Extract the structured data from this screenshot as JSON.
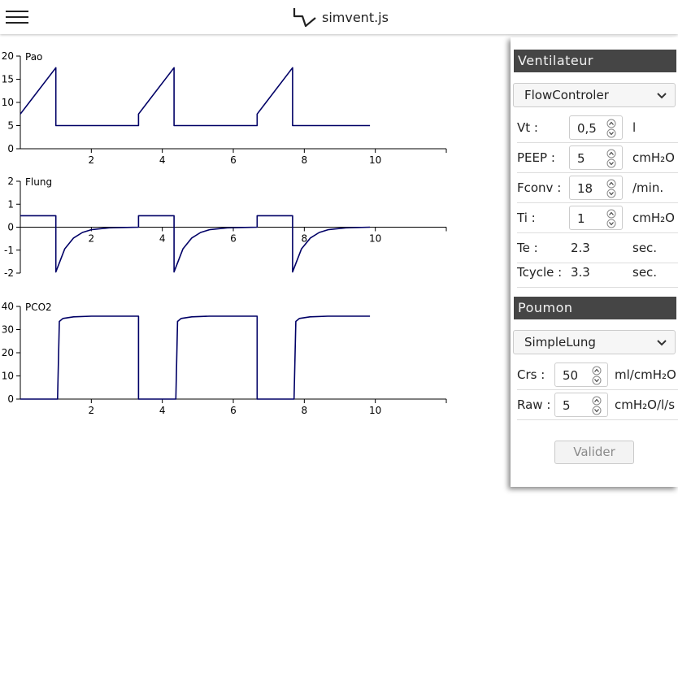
{
  "app": {
    "title": "simvent.js",
    "icons": {
      "menu": "hamburger-menu-icon",
      "logo": "waveform-logo-icon"
    }
  },
  "chart_data": [
    {
      "type": "line",
      "title": "Pao",
      "xlim": [
        0,
        12
      ],
      "ylim": [
        0,
        20
      ],
      "xticks": [
        2,
        4,
        6,
        8,
        10
      ],
      "yticks": [
        0,
        5,
        10,
        15,
        20
      ],
      "series": [
        {
          "color": "#000066",
          "x": [
            0,
            1.0,
            1.0,
            3.33,
            3.33,
            4.33,
            4.33,
            6.67,
            6.67,
            7.67,
            7.67,
            9.85
          ],
          "y": [
            7.5,
            17.5,
            5,
            5,
            7.5,
            17.5,
            5,
            5,
            7.5,
            17.5,
            5,
            5
          ]
        }
      ]
    },
    {
      "type": "line",
      "title": "Flung",
      "xlim": [
        0,
        12
      ],
      "ylim": [
        -2,
        2
      ],
      "xticks": [
        2,
        4,
        6,
        8,
        10
      ],
      "yticks": [
        -2,
        -1,
        0,
        1,
        2
      ],
      "series": [
        {
          "color": "#000066",
          "x": [
            0,
            1.0,
            1.0,
            1.25,
            1.5,
            1.75,
            2.0,
            2.5,
            3.0,
            3.33,
            3.33,
            4.33,
            4.33,
            4.58,
            4.83,
            5.08,
            5.33,
            5.83,
            6.33,
            6.67,
            6.67,
            7.67,
            7.67,
            7.92,
            8.17,
            8.42,
            8.67,
            9.17,
            9.85
          ],
          "y": [
            0.5,
            0.5,
            -1.95,
            -0.95,
            -0.47,
            -0.23,
            -0.11,
            -0.03,
            -0.01,
            0,
            0.5,
            0.5,
            -1.95,
            -0.95,
            -0.47,
            -0.23,
            -0.11,
            -0.03,
            -0.01,
            0,
            0.5,
            0.5,
            -1.95,
            -0.95,
            -0.47,
            -0.23,
            -0.11,
            -0.03,
            0
          ]
        }
      ]
    },
    {
      "type": "line",
      "title": "PCO2",
      "xlim": [
        0,
        12
      ],
      "ylim": [
        0,
        40
      ],
      "xticks": [
        2,
        4,
        6,
        8,
        10
      ],
      "yticks": [
        0,
        10,
        20,
        30,
        40
      ],
      "series": [
        {
          "color": "#000066",
          "x": [
            0,
            1.05,
            1.1,
            1.2,
            1.5,
            2.0,
            3.33,
            3.33,
            4.38,
            4.43,
            4.53,
            4.83,
            5.33,
            6.67,
            6.67,
            7.71,
            7.76,
            7.86,
            8.16,
            8.66,
            9.85
          ],
          "y": [
            0,
            0,
            33.5,
            34.8,
            35.5,
            35.8,
            35.8,
            0,
            0,
            33.5,
            34.8,
            35.5,
            35.8,
            35.8,
            0,
            0,
            33.5,
            34.8,
            35.5,
            35.8,
            35.8
          ]
        }
      ]
    }
  ],
  "panel": {
    "ventilator": {
      "header": "Ventilateur",
      "model": "FlowControler",
      "params": [
        {
          "label": "Vt :",
          "value": "0,5",
          "unit": "l"
        },
        {
          "label": "PEEP :",
          "value": "5",
          "unit": "cmH₂O"
        },
        {
          "label": "Fconv :",
          "value": "18",
          "unit": "/min."
        },
        {
          "label": "Ti :",
          "value": "1",
          "unit": "cmH₂O"
        }
      ],
      "readouts": [
        {
          "label": "Te :",
          "value": "2.3",
          "unit": "sec."
        },
        {
          "label": "Tcycle :",
          "value": "3.3",
          "unit": "sec."
        }
      ]
    },
    "lung": {
      "header": "Poumon",
      "model": "SimpleLung",
      "params": [
        {
          "label": "Crs :",
          "value": "50",
          "unit": "ml/cmH₂O"
        },
        {
          "label": "Raw :",
          "value": "5",
          "unit": "cmH₂O/l/s"
        }
      ]
    },
    "validate_label": "Valider"
  }
}
